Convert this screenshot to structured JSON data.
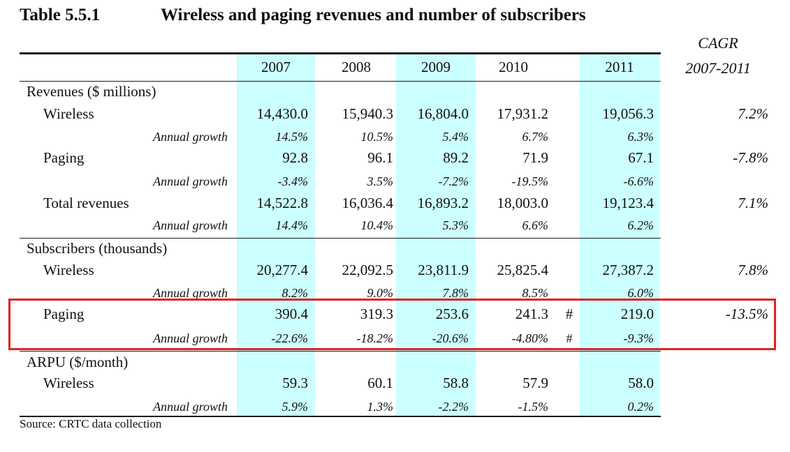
{
  "title": {
    "number": "Table 5.5.1",
    "text": "Wireless and paging revenues and number of subscribers"
  },
  "cagr_header": [
    "CAGR",
    "2007-2011"
  ],
  "years": [
    "2007",
    "2008",
    "2009",
    "2010",
    "2011"
  ],
  "sections": {
    "revenues": {
      "heading": "Revenues ($ millions)",
      "wireless": {
        "label": "Wireless",
        "values": [
          "14,430.0",
          "15,940.3",
          "16,804.0",
          "17,931.2",
          "19,056.3"
        ],
        "cagr": "7.2%"
      },
      "wireless_growth": {
        "label": "Annual growth",
        "values": [
          "14.5%",
          "10.5%",
          "5.4%",
          "6.7%",
          "6.3%"
        ]
      },
      "paging": {
        "label": "Paging",
        "values": [
          "92.8",
          "96.1",
          "89.2",
          "71.9",
          "67.1"
        ],
        "cagr": "-7.8%"
      },
      "paging_growth": {
        "label": "Annual growth",
        "values": [
          "-3.4%",
          "3.5%",
          "-7.2%",
          "-19.5%",
          "-6.6%"
        ]
      },
      "total": {
        "label": "Total revenues",
        "values": [
          "14,522.8",
          "16,036.4",
          "16,893.2",
          "18,003.0",
          "19,123.4"
        ],
        "cagr": "7.1%"
      },
      "total_growth": {
        "label": "Annual growth",
        "values": [
          "14.4%",
          "10.4%",
          "5.3%",
          "6.6%",
          "6.2%"
        ]
      }
    },
    "subscribers": {
      "heading": "Subscribers (thousands)",
      "wireless": {
        "label": "Wireless",
        "values": [
          "20,277.4",
          "22,092.5",
          "23,811.9",
          "25,825.4",
          "27,387.2"
        ],
        "cagr": "7.8%"
      },
      "wireless_growth": {
        "label": "Annual growth",
        "values": [
          "8.2%",
          "9.0%",
          "7.8%",
          "8.5%",
          "6.0%"
        ]
      },
      "paging": {
        "label": "Paging",
        "values": [
          "390.4",
          "319.3",
          "253.6",
          "241.3",
          "219.0"
        ],
        "cagr": "-13.5%",
        "mark": "#"
      },
      "paging_growth": {
        "label": "Annual growth",
        "values": [
          "-22.6%",
          "-18.2%",
          "-20.6%",
          "-4.80%",
          "-9.3%"
        ],
        "mark": "#"
      }
    },
    "arpu": {
      "heading": "ARPU ($/month)",
      "wireless": {
        "label": "Wireless",
        "values": [
          "59.3",
          "60.1",
          "58.8",
          "57.9",
          "58.0"
        ]
      },
      "wireless_growth": {
        "label": "Annual growth",
        "values": [
          "5.9%",
          "1.3%",
          "-2.2%",
          "-1.5%",
          "0.2%"
        ]
      }
    }
  },
  "source": "Source: CRTC data collection",
  "colors": {
    "column_highlight": "#ccffff",
    "row_box": "#e0201e"
  }
}
